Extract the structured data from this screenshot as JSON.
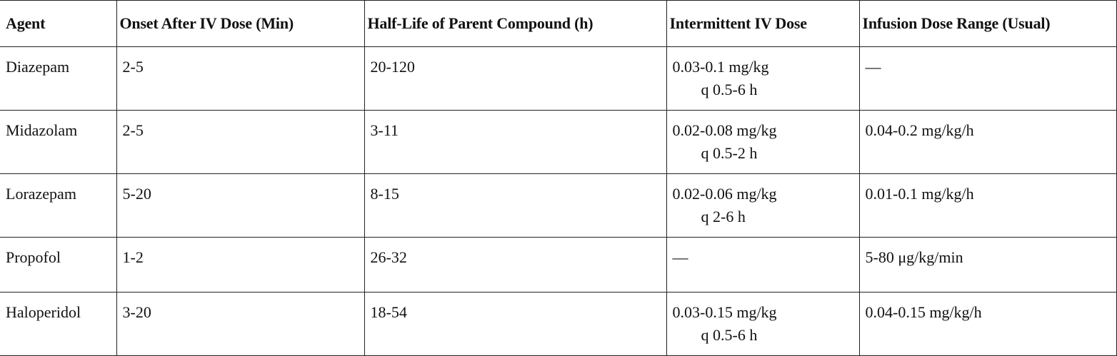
{
  "table": {
    "header": [
      "Agent",
      "Onset After IV Dose (Min)",
      "Half-Life of Parent Compound (h)",
      "Intermittent IV Dose",
      "Infusion Dose Range (Usual)"
    ],
    "rows": [
      [
        "Diazepam",
        "2-5",
        "20-120",
        [
          "0.03-0.1 mg/kg",
          "q 0.5-6 h"
        ],
        "—"
      ],
      [
        "Midazolam",
        "2-5",
        "3-11",
        [
          "0.02-0.08 mg/kg",
          "q 0.5-2 h"
        ],
        "0.04-0.2 mg/kg/h"
      ],
      [
        "Lorazepam",
        "5-20",
        "8-15",
        [
          "0.02-0.06 mg/kg",
          "q 2-6 h"
        ],
        "0.01-0.1 mg/kg/h"
      ],
      [
        "Propofol",
        "1-2",
        "26-32",
        "—",
        "5-80 μg/kg/min"
      ],
      [
        "Haloperidol",
        "3-20",
        "18-54",
        [
          "0.03-0.15 mg/kg",
          "q 0.5-6 h"
        ],
        "0.04-0.15 mg/kg/h"
      ]
    ]
  }
}
